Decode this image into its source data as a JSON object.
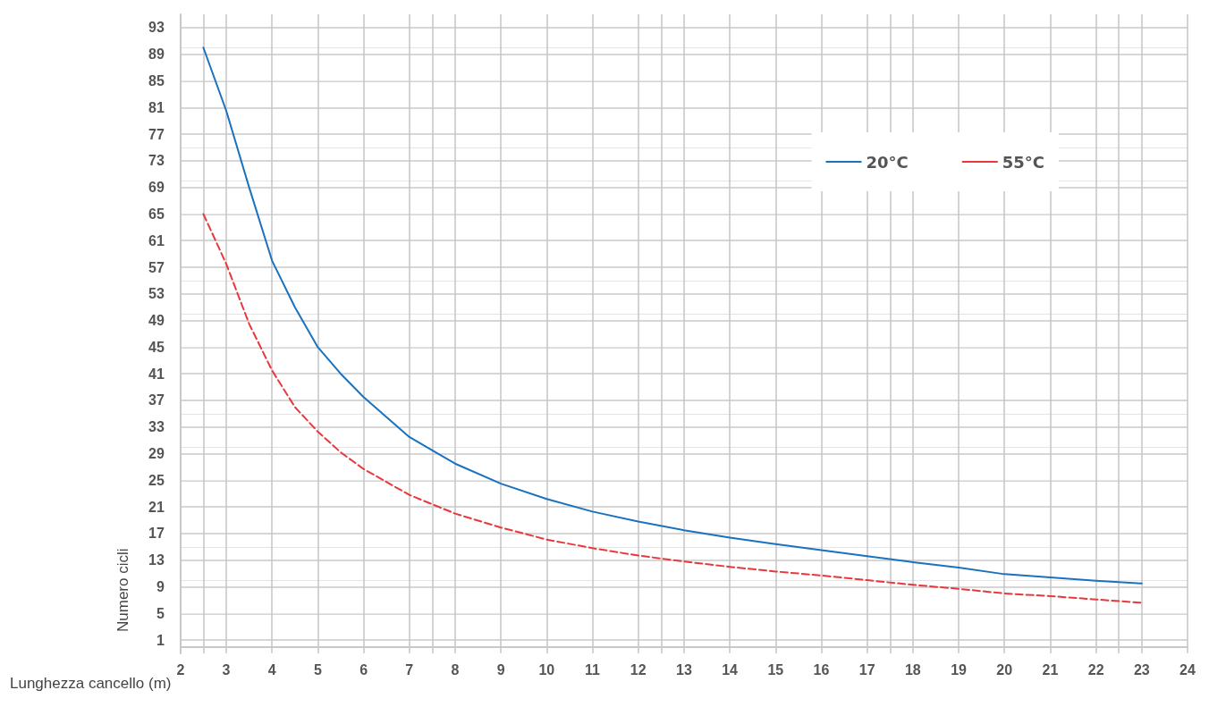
{
  "chart_data": {
    "type": "line",
    "xlabel": "Lunghezza cancello (m)",
    "ylabel": "Numero cicli",
    "x": [
      2.5,
      3,
      3.5,
      4,
      4.5,
      5,
      5.5,
      6,
      7,
      8,
      9,
      10,
      11,
      12,
      13,
      14,
      15,
      16,
      17,
      18,
      19,
      20,
      21,
      22,
      23
    ],
    "series": [
      {
        "name": "20°C",
        "color": "#1a72bf",
        "line_style": "solid",
        "values": [
          90,
          80.5,
          69,
          58,
          51,
          45,
          41,
          37.5,
          31.5,
          27.5,
          24.5,
          22.2,
          20.3,
          18.8,
          17.5,
          16.4,
          15.4,
          14.5,
          13.6,
          12.7,
          11.9,
          10.9,
          10.4,
          9.9,
          9.5
        ]
      },
      {
        "name": "55°C",
        "color": "#e8383d",
        "line_style": "dashed",
        "values": [
          65,
          57.5,
          48.5,
          41.5,
          36,
          32.3,
          29.2,
          26.7,
          22.8,
          20,
          17.9,
          16.1,
          14.8,
          13.7,
          12.8,
          12,
          11.3,
          10.7,
          10,
          9.3,
          8.7,
          8,
          7.6,
          7.1,
          6.6
        ]
      }
    ],
    "xlim": [
      2,
      24
    ],
    "xticks": [
      2,
      3,
      4,
      5,
      6,
      7,
      8,
      9,
      10,
      11,
      12,
      13,
      14,
      15,
      16,
      17,
      18,
      19,
      20,
      21,
      22,
      23,
      24
    ],
    "ylim": [
      -1,
      95
    ],
    "yticks": [
      1,
      5,
      9,
      13,
      17,
      21,
      25,
      29,
      33,
      37,
      41,
      45,
      49,
      53,
      57,
      61,
      65,
      69,
      73,
      77,
      81,
      85,
      89,
      93
    ],
    "grid": true,
    "legend": "top right",
    "marker": "none"
  }
}
